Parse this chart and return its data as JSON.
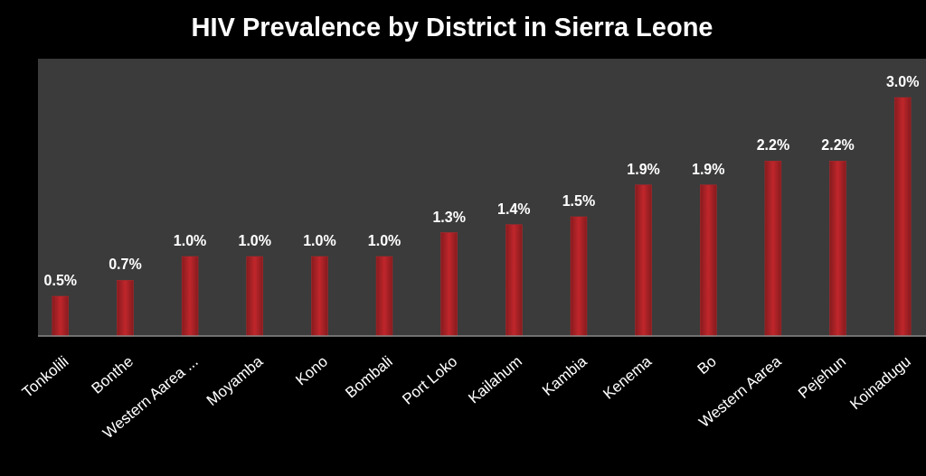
{
  "chart_data": {
    "type": "bar",
    "title": "HIV Prevalence by District  in Sierra Leone",
    "categories": [
      "Tonkolili",
      "Bonthe",
      "Western Aarea ...",
      "Moyamba",
      "Kono",
      "Bombali",
      "Port Loko",
      "Kailahum",
      "Kambia",
      "Kenema",
      "Bo",
      "Western Aarea",
      "Pejehun",
      "Koinadugu"
    ],
    "values": [
      0.5,
      0.7,
      1.0,
      1.0,
      1.0,
      1.0,
      1.3,
      1.4,
      1.5,
      1.9,
      1.9,
      2.2,
      2.2,
      3.0
    ],
    "value_labels": [
      "0.5%",
      "0.7%",
      "1.0%",
      "1.0%",
      "1.0%",
      "1.0%",
      "1.3%",
      "1.4%",
      "1.5%",
      "1.9%",
      "1.9%",
      "2.2%",
      "2.2%",
      "3.0%"
    ],
    "color": "#c0262b"
  }
}
